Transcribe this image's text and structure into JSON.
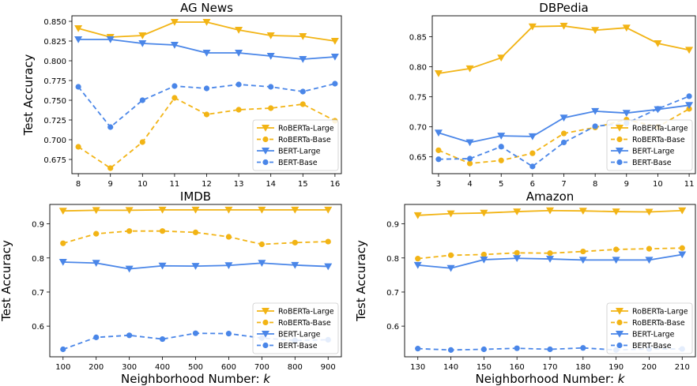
{
  "figure": {
    "ylabel_text": "Test Accuracy",
    "xlabel_text": "Neighborhood Number: ",
    "xlabel_var": "k"
  },
  "colors": {
    "roberta": "#F2B415",
    "bert": "#4A86E8",
    "axis": "#000000",
    "legend_border": "#cccccc"
  },
  "legend_labels": [
    "RoBERTa-Large",
    "RoBERTa-Base",
    "BERT-Large",
    "BERT-Base"
  ],
  "chart_data": [
    {
      "type": "line",
      "title": "AG News",
      "xlabel": "",
      "ylabel": "Test Accuracy",
      "x": [
        8,
        9,
        10,
        11,
        12,
        13,
        14,
        15,
        16
      ],
      "xticks": [
        "8",
        "9",
        "10",
        "11",
        "12",
        "13",
        "14",
        "15",
        "16"
      ],
      "xlim": [
        7.8,
        16.2
      ],
      "ylim": [
        0.657,
        0.857
      ],
      "yticks": [
        0.675,
        0.7,
        0.725,
        0.75,
        0.775,
        0.8,
        0.825,
        0.85
      ],
      "yticklabels": [
        "0.675",
        "0.700",
        "0.725",
        "0.750",
        "0.775",
        "0.800",
        "0.825",
        "0.850"
      ],
      "legend_position": "lower-right",
      "series": [
        {
          "name": "RoBERTa-Large",
          "values": [
            0.841,
            0.83,
            0.832,
            0.849,
            0.849,
            0.839,
            0.832,
            0.831,
            0.825
          ]
        },
        {
          "name": "RoBERTa-Base",
          "values": [
            0.691,
            0.664,
            0.697,
            0.753,
            0.732,
            0.738,
            0.74,
            0.745,
            0.724
          ]
        },
        {
          "name": "BERT-Large",
          "values": [
            0.827,
            0.827,
            0.822,
            0.82,
            0.81,
            0.81,
            0.806,
            0.802,
            0.805
          ]
        },
        {
          "name": "BERT-Base",
          "values": [
            0.767,
            0.716,
            0.75,
            0.768,
            0.765,
            0.77,
            0.767,
            0.761,
            0.771
          ]
        }
      ]
    },
    {
      "type": "line",
      "title": "DBPedia",
      "xlabel": "",
      "ylabel": "",
      "x": [
        3,
        4,
        5,
        6,
        7,
        8,
        9,
        10,
        11
      ],
      "xticks": [
        "3",
        "4",
        "5",
        "6",
        "7",
        "8",
        "9",
        "10",
        "11"
      ],
      "xlim": [
        2.8,
        11.2
      ],
      "ylim": [
        0.622,
        0.885
      ],
      "yticks": [
        0.65,
        0.7,
        0.75,
        0.8,
        0.85
      ],
      "yticklabels": [
        "0.65",
        "0.70",
        "0.75",
        "0.80",
        "0.85"
      ],
      "legend_position": "lower-right",
      "series": [
        {
          "name": "RoBERTa-Large",
          "values": [
            0.789,
            0.797,
            0.815,
            0.867,
            0.868,
            0.861,
            0.865,
            0.839,
            0.828
          ]
        },
        {
          "name": "RoBERTa-Base",
          "values": [
            0.661,
            0.639,
            0.644,
            0.656,
            0.689,
            0.699,
            0.712,
            0.7,
            0.73
          ]
        },
        {
          "name": "BERT-Large",
          "values": [
            0.69,
            0.674,
            0.685,
            0.684,
            0.715,
            0.726,
            0.723,
            0.729,
            0.736
          ]
        },
        {
          "name": "BERT-Base",
          "values": [
            0.646,
            0.647,
            0.667,
            0.634,
            0.674,
            0.701,
            0.706,
            0.73,
            0.751
          ]
        }
      ]
    },
    {
      "type": "line",
      "title": "IMDB",
      "xlabel": "Neighborhood Number: k",
      "ylabel": "Test Accuracy",
      "x": [
        100,
        200,
        300,
        400,
        500,
        600,
        700,
        800,
        900
      ],
      "xticks": [
        "100",
        "200",
        "300",
        "400",
        "500",
        "600",
        "700",
        "800",
        "900"
      ],
      "xlim": [
        60,
        940
      ],
      "ylim": [
        0.51,
        0.957
      ],
      "yticks": [
        0.6,
        0.7,
        0.8,
        0.9
      ],
      "yticklabels": [
        "0.6",
        "0.7",
        "0.8",
        "0.9"
      ],
      "legend_position": "lower-right",
      "series": [
        {
          "name": "RoBERTa-Large",
          "values": [
            0.938,
            0.94,
            0.94,
            0.941,
            0.941,
            0.941,
            0.941,
            0.941,
            0.941
          ]
        },
        {
          "name": "RoBERTa-Base",
          "values": [
            0.843,
            0.871,
            0.879,
            0.879,
            0.875,
            0.862,
            0.84,
            0.845,
            0.848
          ]
        },
        {
          "name": "BERT-Large",
          "values": [
            0.788,
            0.785,
            0.768,
            0.777,
            0.776,
            0.778,
            0.785,
            0.779,
            0.775
          ]
        },
        {
          "name": "BERT-Base",
          "values": [
            0.532,
            0.567,
            0.573,
            0.562,
            0.579,
            0.578,
            0.565,
            0.558,
            0.56
          ]
        }
      ]
    },
    {
      "type": "line",
      "title": "Amazon",
      "xlabel": "Neighborhood Number: k",
      "ylabel": "Test Accuracy",
      "x": [
        130,
        140,
        150,
        160,
        170,
        180,
        190,
        200,
        210
      ],
      "xticks": [
        "130",
        "140",
        "150",
        "160",
        "170",
        "180",
        "190",
        "200",
        "210"
      ],
      "xlim": [
        126,
        214
      ],
      "ylim": [
        0.51,
        0.957
      ],
      "yticks": [
        0.6,
        0.7,
        0.8,
        0.9
      ],
      "yticklabels": [
        "0.6",
        "0.7",
        "0.8",
        "0.9"
      ],
      "legend_position": "lower-right",
      "series": [
        {
          "name": "RoBERTa-Large",
          "values": [
            0.925,
            0.93,
            0.932,
            0.936,
            0.939,
            0.938,
            0.936,
            0.935,
            0.939
          ]
        },
        {
          "name": "RoBERTa-Base",
          "values": [
            0.798,
            0.808,
            0.81,
            0.815,
            0.814,
            0.819,
            0.825,
            0.827,
            0.829
          ]
        },
        {
          "name": "BERT-Large",
          "values": [
            0.779,
            0.77,
            0.795,
            0.799,
            0.797,
            0.794,
            0.794,
            0.794,
            0.81
          ]
        },
        {
          "name": "BERT-Base",
          "values": [
            0.534,
            0.53,
            0.532,
            0.535,
            0.532,
            0.536,
            0.53,
            0.533,
            0.533
          ]
        }
      ]
    }
  ]
}
